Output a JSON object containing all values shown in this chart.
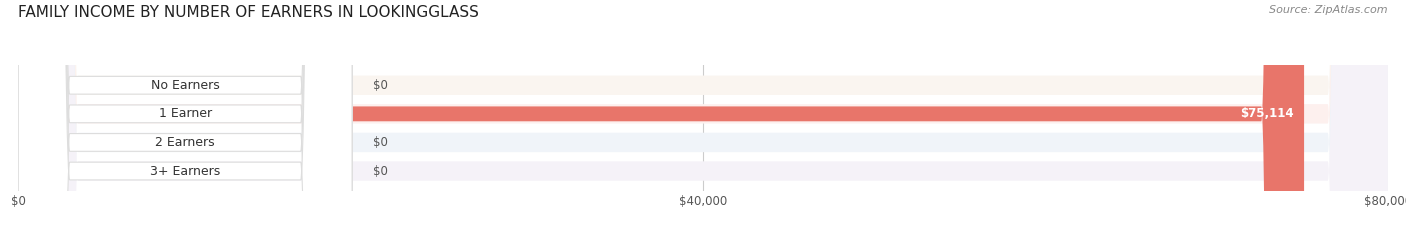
{
  "title": "FAMILY INCOME BY NUMBER OF EARNERS IN LOOKINGGLASS",
  "source": "Source: ZipAtlas.com",
  "categories": [
    "No Earners",
    "1 Earner",
    "2 Earners",
    "3+ Earners"
  ],
  "values": [
    0,
    75114,
    0,
    0
  ],
  "max_value": 80000,
  "bar_colors": [
    "#f2c89b",
    "#e8756a",
    "#aec6e8",
    "#c9b8d8"
  ],
  "bg_colors": [
    "#faf5f0",
    "#fdf0ee",
    "#f0f4f9",
    "#f5f2f8"
  ],
  "tick_values": [
    0,
    40000,
    80000
  ],
  "tick_labels": [
    "$0",
    "$40,000",
    "$80,000"
  ],
  "value_labels": [
    "$0",
    "$75,114",
    "$0",
    "$0"
  ],
  "title_fontsize": 11,
  "source_fontsize": 8,
  "background_color": "#ffffff"
}
